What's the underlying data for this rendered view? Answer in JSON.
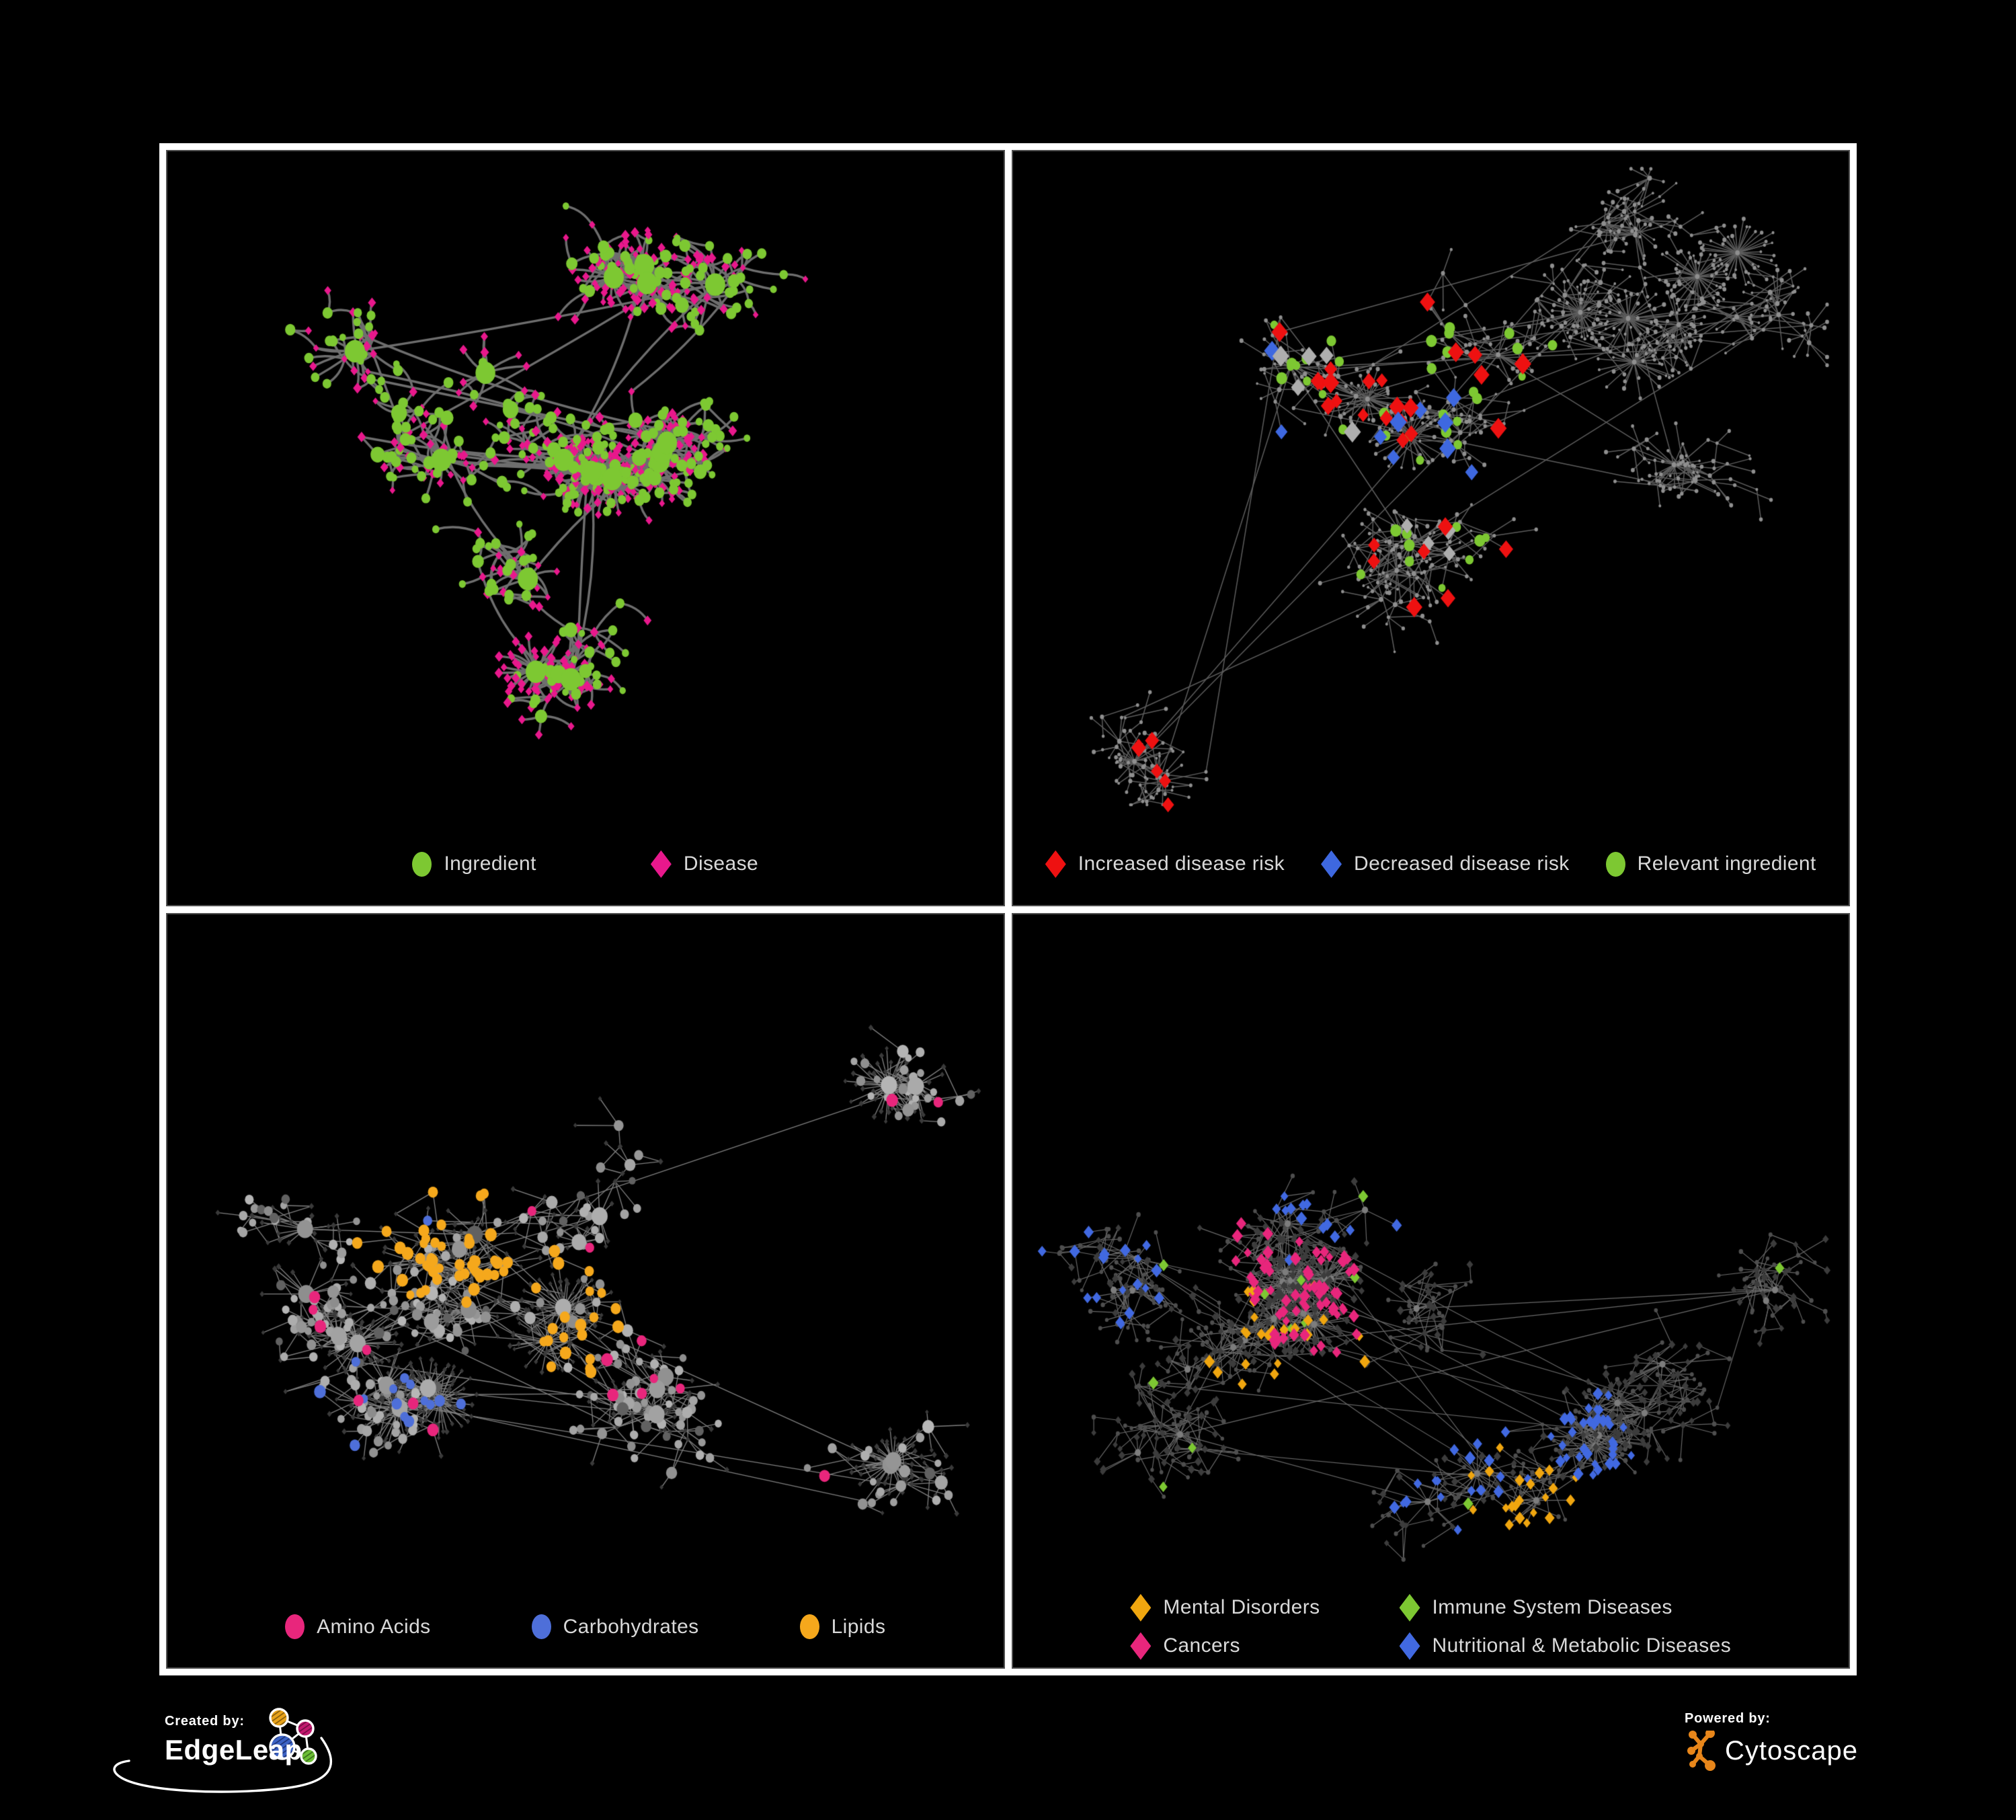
{
  "poster": {
    "background": "#000000",
    "frame_color": "#ffffff",
    "panel_border_color": "#4f4f4f",
    "legend_text_color": "#d9d9d9"
  },
  "panels": [
    {
      "id": "ingredient-disease",
      "legend_layout": "row0",
      "legend": [
        {
          "label": "Ingredient",
          "shape": "circle",
          "color": "#7dc832"
        },
        {
          "label": "Disease",
          "shape": "diamond",
          "color": "#e8188c"
        }
      ],
      "network": {
        "seed": 11,
        "style": "p1",
        "nodes": 620,
        "clusters": 11,
        "core": 4,
        "dandelions": 6,
        "cross": 14,
        "curved": true,
        "edge_color": "#6e6e6e",
        "edge_width": 3.4,
        "colors": {
          "ingredient": "#7dc832",
          "disease": "#e8188c"
        }
      }
    },
    {
      "id": "disease-risk",
      "legend_layout": "row1",
      "legend": [
        {
          "label": "Increased disease risk",
          "shape": "diamond",
          "color": "#ee1111"
        },
        {
          "label": "Decreased disease risk",
          "shape": "diamond",
          "color": "#3e68e0"
        },
        {
          "label": "Relevant ingredient",
          "shape": "circle",
          "color": "#7dc832"
        }
      ],
      "network": {
        "seed": 23,
        "style": "p2",
        "nodes": 820,
        "clusters": 12,
        "core": 5,
        "dandelions": 7,
        "cross": 18,
        "curved": false,
        "edge_color": "#5d5d5d",
        "edge_width": 1.5,
        "base": {
          "color": "#8f8f8f"
        },
        "highlights": [
          {
            "type": "disease",
            "shape": "diamond",
            "color": "#ee1111",
            "count": 34,
            "size": 10,
            "clusters": [
              0,
              1,
              2,
              3,
              4,
              6
            ]
          },
          {
            "type": "disease",
            "shape": "diamond",
            "color": "#3e68e0",
            "count": 10,
            "size": 10,
            "clusters": [
              0,
              1,
              5
            ]
          },
          {
            "type": "disease",
            "shape": "diamond",
            "color": "#aeaeae",
            "count": 9,
            "size": 10,
            "clusters": [
              0,
              2,
              3
            ]
          },
          {
            "type": "ingredient",
            "shape": "circle",
            "color": "#7dc832",
            "count": 40,
            "size": 6.5,
            "clusters": [
              0,
              1,
              2,
              3,
              4
            ]
          }
        ]
      }
    },
    {
      "id": "nutrient-classes",
      "legend_layout": "row2",
      "legend": [
        {
          "label": "Amino Acids",
          "shape": "circle",
          "color": "#e8267c"
        },
        {
          "label": "Carbohydrates",
          "shape": "circle",
          "color": "#4e6fd9"
        },
        {
          "label": "Lipids",
          "shape": "circle",
          "color": "#f5a81c"
        }
      ],
      "network": {
        "seed": 37,
        "style": "p3",
        "nodes": 800,
        "clusters": 12,
        "core": 5,
        "dandelions": 8,
        "cross": 16,
        "curved": false,
        "edge_color": "#7f7f7f",
        "edge_width": 1.35,
        "base": {
          "ingredient_color": "#9a9a9a",
          "disease_color": "#3a3a3a"
        },
        "highlights": [
          {
            "type": "ingredient",
            "shape": "circle",
            "color": "#f5a81c",
            "count": 70,
            "size": 7,
            "clusters": [
              0,
              1,
              2
            ]
          },
          {
            "type": "ingredient",
            "shape": "circle",
            "color": "#e8267c",
            "count": 18,
            "size": 7,
            "clusters": "any"
          },
          {
            "type": "ingredient",
            "shape": "circle",
            "color": "#4e6fd9",
            "count": 15,
            "size": 7,
            "clusters": [
              1,
              2,
              6
            ]
          }
        ]
      }
    },
    {
      "id": "disease-classes",
      "legend_layout": "grid2",
      "legend": [
        {
          "label": "Mental Disorders",
          "shape": "diamond",
          "color": "#f0a60f"
        },
        {
          "label": "Immune System Diseases",
          "shape": "diamond",
          "color": "#7dc832"
        },
        {
          "label": "Cancers",
          "shape": "diamond",
          "color": "#e8267c"
        },
        {
          "label": "Nutritional & Metabolic Diseases",
          "shape": "diamond",
          "color": "#4169e1"
        }
      ],
      "network": {
        "seed": 53,
        "style": "p4",
        "nodes": 900,
        "clusters": 13,
        "core": 5,
        "dandelions": 8,
        "cross": 18,
        "curved": false,
        "edge_color": "#6a6a6a",
        "edge_width": 1.15,
        "base": {
          "ingredient_color": "#4e4e4e",
          "disease_color": "#3c3c3c"
        },
        "highlights": [
          {
            "type": "disease",
            "shape": "diamond",
            "color": "#f0a60f",
            "count": 100,
            "size": 6.5,
            "clusters": [
              1,
              5
            ]
          },
          {
            "type": "disease",
            "shape": "diamond",
            "color": "#e8267c",
            "count": 70,
            "size": 6.5,
            "clusters": [
              0,
              3
            ]
          },
          {
            "type": "disease",
            "shape": "diamond",
            "color": "#4169e1",
            "count": 85,
            "size": 6.5,
            "clusters": [
              2,
              6,
              9,
              10
            ]
          },
          {
            "type": "disease",
            "shape": "diamond",
            "color": "#7dc832",
            "count": 12,
            "size": 6.5,
            "clusters": "any"
          }
        ]
      }
    }
  ],
  "footer": {
    "created_by": {
      "label": "Created by:",
      "brand": "EdgeLeap"
    },
    "powered_by": {
      "label": "Powered by:",
      "brand": "Cytoscape"
    },
    "edgeleap_colors": {
      "orange": "#e8a21a",
      "magenta": "#c2186e",
      "blue": "#3b62c4",
      "green": "#6cbe35"
    },
    "cytoscape_color": "#e8861a"
  }
}
